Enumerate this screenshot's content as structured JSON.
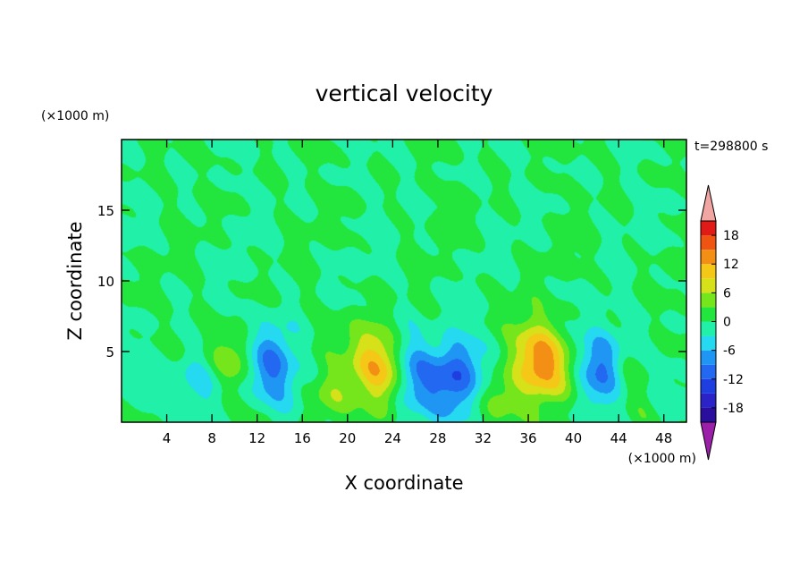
{
  "chart_data": {
    "type": "heatmap",
    "title": "vertical velocity",
    "xlabel": "X coordinate",
    "ylabel": "Z coordinate",
    "x_unit": "(×1000 m)",
    "y_unit": "(×1000 m)",
    "time_label": "t=298800 s",
    "xlim": [
      0,
      50
    ],
    "ylim": [
      0,
      20
    ],
    "xticks": [
      4,
      8,
      12,
      16,
      20,
      24,
      28,
      32,
      36,
      40,
      44,
      48
    ],
    "yticks": [
      5,
      10,
      15
    ],
    "colorbar": {
      "ticks": [
        18,
        12,
        6,
        0,
        -6,
        -12,
        -18
      ],
      "range": [
        -21,
        21
      ],
      "levels": [
        -21,
        -18,
        -15,
        -12,
        -9,
        -6,
        -3,
        0,
        3,
        6,
        9,
        12,
        15,
        18,
        21
      ],
      "colors": [
        "#9b1fa8",
        "#2a0e9e",
        "#2b23c8",
        "#1e3ee0",
        "#2368f0",
        "#1f96f4",
        "#25d9f0",
        "#20f0a8",
        "#22e63e",
        "#76e61c",
        "#d6e11a",
        "#f5c818",
        "#f38f14",
        "#ef5412",
        "#e01a16",
        "#f2a6a4"
      ]
    },
    "features": [
      {
        "x": 2.0,
        "z": 3.0,
        "w": -4
      },
      {
        "x": 6.0,
        "z": 3.0,
        "w": -4
      },
      {
        "x": 10.0,
        "z": 4.5,
        "w": 7
      },
      {
        "x": 13.2,
        "z": 4.2,
        "w": -11
      },
      {
        "x": 15.0,
        "z": 2.5,
        "w": -3
      },
      {
        "x": 18.5,
        "z": 2.0,
        "w": 7
      },
      {
        "x": 22.5,
        "z": 4.0,
        "w": 15
      },
      {
        "x": 25.8,
        "z": 3.0,
        "w": -11
      },
      {
        "x": 29.5,
        "z": 3.5,
        "w": -12
      },
      {
        "x": 33.5,
        "z": 2.0,
        "w": 5
      },
      {
        "x": 37.0,
        "z": 4.5,
        "w": 16
      },
      {
        "x": 42.5,
        "z": 4.0,
        "w": -10
      },
      {
        "x": 44.5,
        "z": 3.5,
        "w": 4
      },
      {
        "x": 48.5,
        "z": 2.5,
        "w": -3
      }
    ]
  }
}
